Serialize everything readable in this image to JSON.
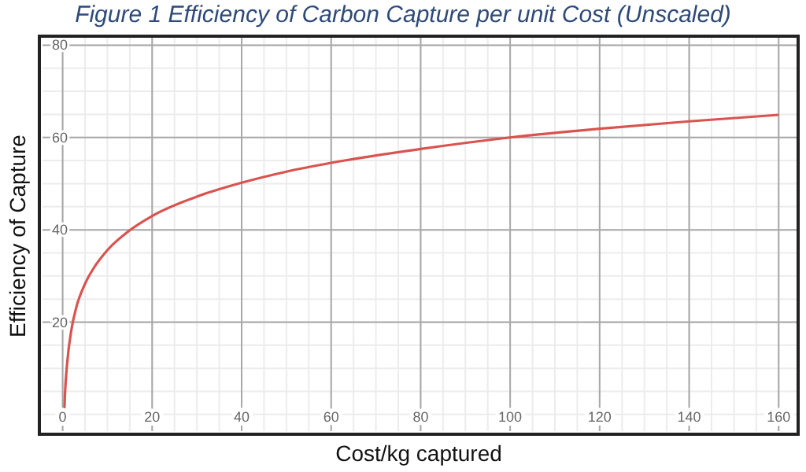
{
  "chart_data": {
    "type": "line",
    "title": "Figure 1 Efficiency of Carbon Capture per unit Cost (Unscaled)",
    "xlabel": "Cost/kg captured",
    "ylabel": "Efficiency  of Capture",
    "x": [
      0.35,
      0.5,
      1,
      2,
      3,
      5,
      7,
      10,
      15,
      20,
      30,
      40,
      50,
      60,
      80,
      100,
      120,
      140,
      160
    ],
    "series": [
      {
        "color": "#d9534f",
        "values": [
          0,
          4,
          11,
          18.6,
          23,
          28.3,
          31.8,
          35.6,
          39.9,
          43,
          47.2,
          50.2,
          52.6,
          54.5,
          57.5,
          60,
          61.9,
          63.5,
          64.9
        ]
      }
    ],
    "xlim": [
      -4.5,
      164
    ],
    "ylim": [
      -3.6,
      81.6
    ],
    "xticks": [
      0,
      {
        "value": 5,
        "label": null
      },
      {
        "value": 10,
        "label": null
      },
      {
        "value": 15,
        "label": null
      },
      20,
      {
        "value": 25,
        "label": null
      },
      {
        "value": 30,
        "label": null
      },
      {
        "value": 35,
        "label": null
      },
      40,
      {
        "value": 45,
        "label": null
      },
      {
        "value": 50,
        "label": null
      },
      {
        "value": 55,
        "label": null
      },
      60,
      {
        "value": 65,
        "label": null
      },
      {
        "value": 70,
        "label": null
      },
      {
        "value": 75,
        "label": null
      },
      80,
      {
        "value": 85,
        "label": null
      },
      {
        "value": 90,
        "label": null
      },
      {
        "value": 95,
        "label": null
      },
      100,
      {
        "value": 105,
        "label": null
      },
      {
        "value": 110,
        "label": null
      },
      {
        "value": 115,
        "label": null
      },
      120,
      {
        "value": 125,
        "label": null
      },
      {
        "value": 130,
        "label": null
      },
      {
        "value": 135,
        "label": null
      },
      140,
      {
        "value": 145,
        "label": null
      },
      {
        "value": 150,
        "label": null
      },
      {
        "value": 155,
        "label": null
      },
      160
    ],
    "yticks": [
      {
        "value": 0,
        "label": null
      },
      {
        "value": 5,
        "label": null
      },
      {
        "value": 10,
        "label": null
      },
      {
        "value": 15,
        "label": null
      },
      20,
      {
        "value": 25,
        "label": null
      },
      {
        "value": 30,
        "label": null
      },
      {
        "value": 35,
        "label": null
      },
      40,
      {
        "value": 45,
        "label": null
      },
      {
        "value": 50,
        "label": null
      },
      {
        "value": 55,
        "label": null
      },
      60,
      {
        "value": 65,
        "label": null
      },
      {
        "value": 70,
        "label": null
      },
      {
        "value": 75,
        "label": null
      },
      80
    ],
    "grid": true,
    "legend": false,
    "marker": "none",
    "line_style": "solid"
  }
}
